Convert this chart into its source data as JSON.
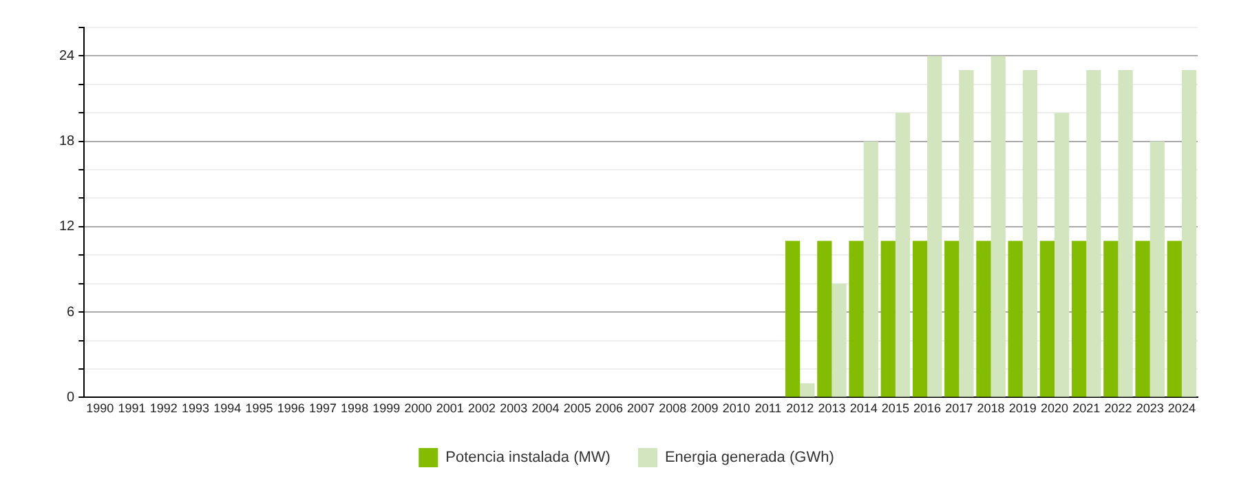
{
  "chart_data": {
    "type": "bar",
    "categories": [
      "1990",
      "1991",
      "1992",
      "1993",
      "1994",
      "1995",
      "1996",
      "1997",
      "1998",
      "1999",
      "2000",
      "2001",
      "2002",
      "2003",
      "2004",
      "2005",
      "2006",
      "2007",
      "2008",
      "2009",
      "2010",
      "2011",
      "2012",
      "2013",
      "2014",
      "2015",
      "2016",
      "2017",
      "2018",
      "2019",
      "2020",
      "2021",
      "2022",
      "2023",
      "2024"
    ],
    "series": [
      {
        "name": "Potencia instalada (MW)",
        "color": "#84bd00",
        "values": [
          null,
          null,
          null,
          null,
          null,
          null,
          null,
          null,
          null,
          null,
          null,
          null,
          null,
          null,
          null,
          null,
          null,
          null,
          null,
          null,
          null,
          null,
          11,
          11,
          11,
          11,
          11,
          11,
          11,
          11,
          11,
          11,
          11,
          11,
          11
        ]
      },
      {
        "name": "Energia generada (GWh)",
        "color": "#d3e5bf",
        "values": [
          null,
          null,
          null,
          null,
          null,
          null,
          null,
          null,
          null,
          null,
          null,
          null,
          null,
          null,
          null,
          null,
          null,
          null,
          null,
          null,
          null,
          null,
          1,
          8,
          18,
          20,
          24,
          23,
          24,
          23,
          20,
          23,
          23,
          18,
          23
        ]
      }
    ],
    "ylim": [
      0,
      26
    ],
    "yticks": [
      0,
      {
        "value": 2,
        "label": null
      },
      {
        "value": 4,
        "label": null
      },
      6,
      {
        "value": 8,
        "label": null
      },
      {
        "value": 10,
        "label": null
      },
      12,
      {
        "value": 14,
        "label": null
      },
      {
        "value": 16,
        "label": null
      },
      18,
      {
        "value": 20,
        "label": null
      },
      {
        "value": 22,
        "label": null
      },
      24,
      {
        "value": 26,
        "label": null
      }
    ],
    "grid": "y",
    "legend": "bottom"
  }
}
